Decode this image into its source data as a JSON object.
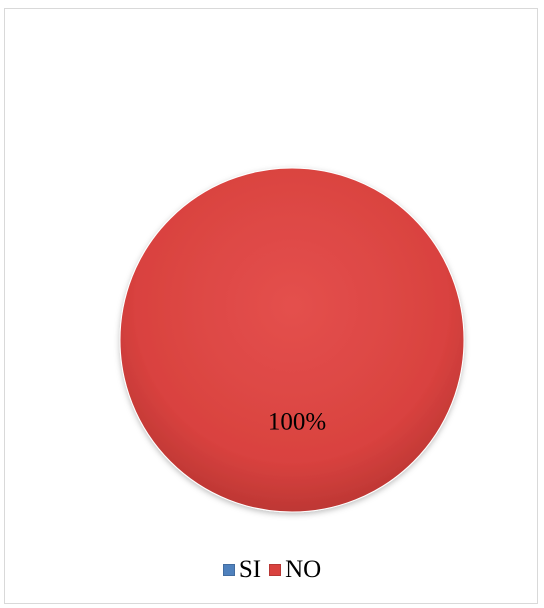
{
  "chart_data": {
    "type": "pie",
    "categories": [
      "SI",
      "NO"
    ],
    "values": [
      0,
      100
    ],
    "data_labels": [
      "",
      "100%"
    ],
    "colors": [
      "#4f81bd",
      "#d9423f"
    ],
    "legend": "bottom",
    "title": ""
  },
  "legend": {
    "items": [
      {
        "label": "SI",
        "color": "#4f81bd"
      },
      {
        "label": "NO",
        "color": "#d9423f"
      }
    ]
  }
}
